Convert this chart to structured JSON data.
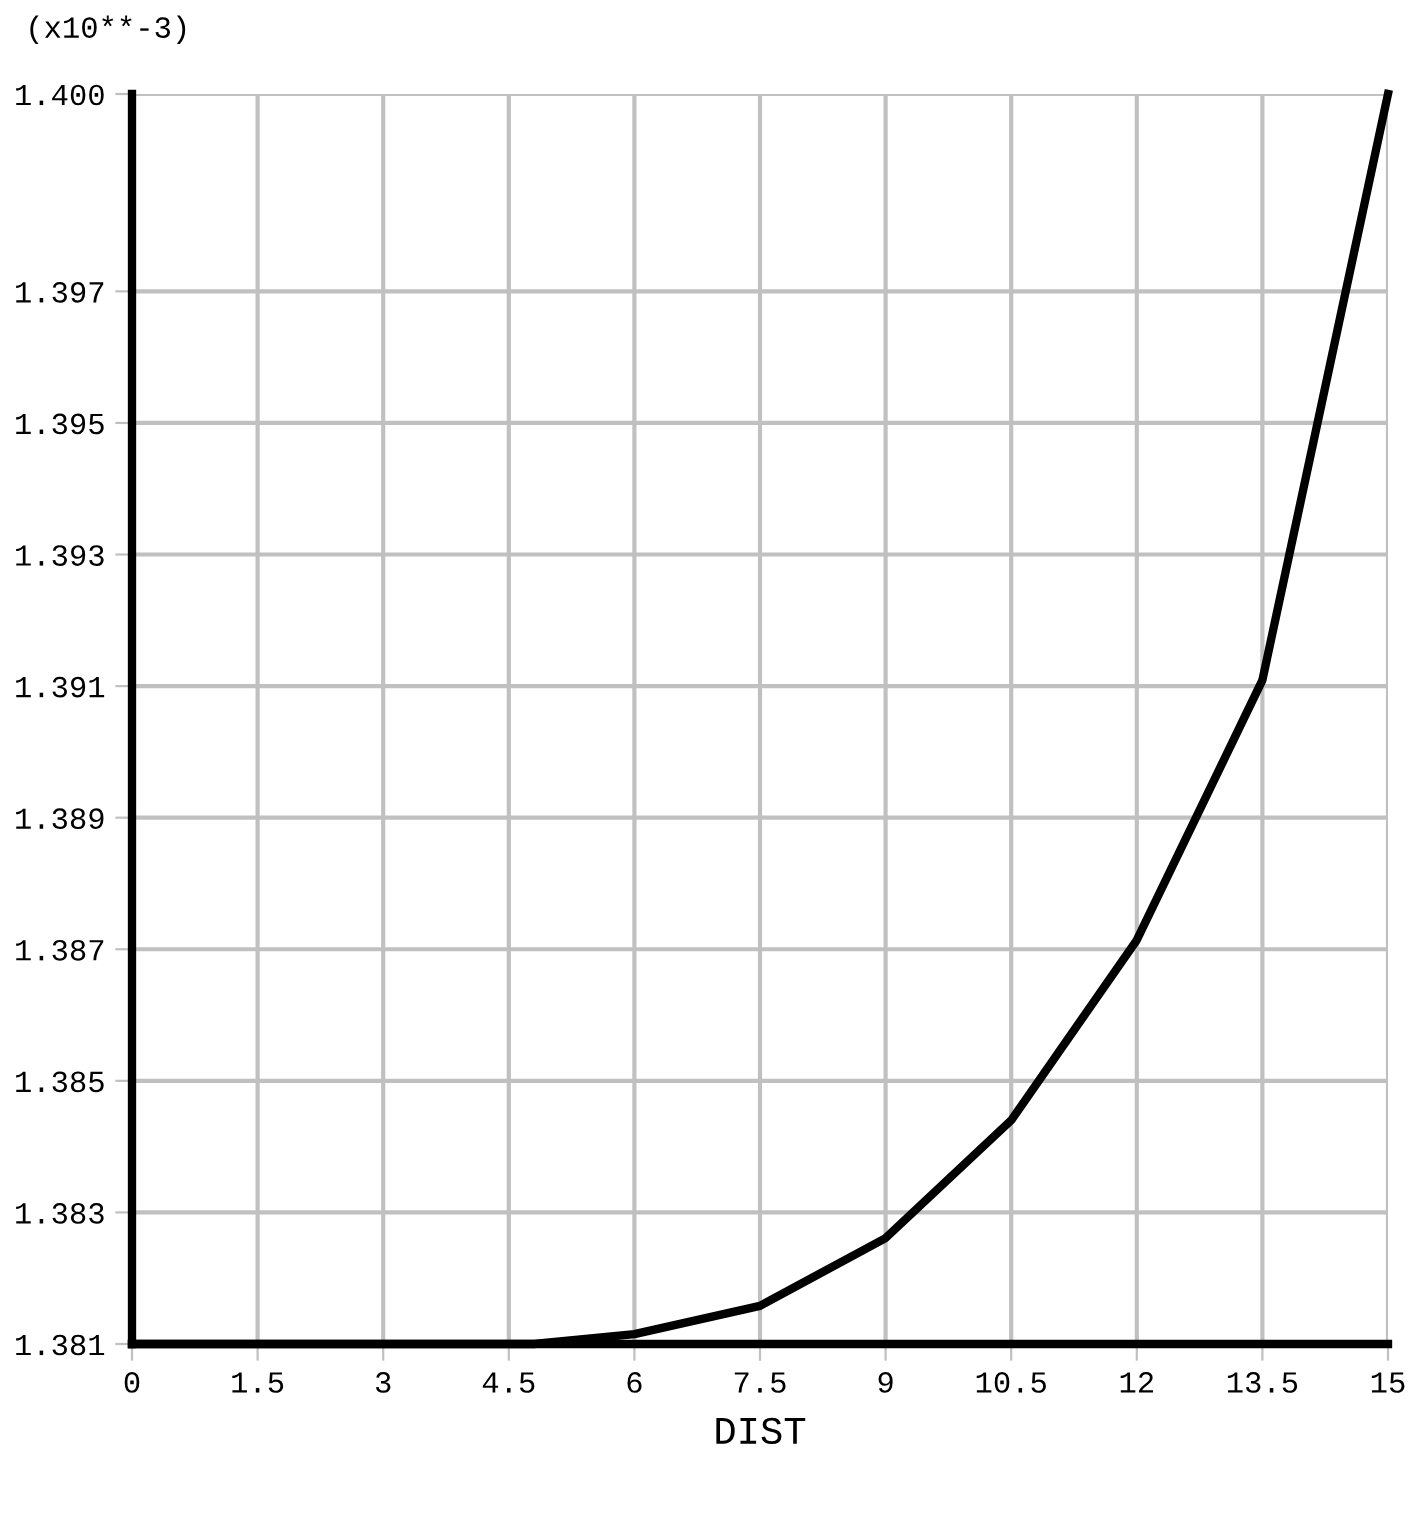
{
  "chart_data": {
    "type": "line",
    "xlabel": "DIST",
    "ylabel": "(x10**-3)",
    "x": [
      0,
      2.7,
      4.8,
      6,
      7.5,
      9,
      10.5,
      12,
      13.5,
      15
    ],
    "series": [
      {
        "color": "#000000",
        "values": [
          1.381,
          1.381,
          1.381,
          1.38115,
          1.38158,
          1.38261,
          1.3844,
          1.38714,
          1.39109,
          1.4
        ]
      }
    ],
    "xlim": [
      0,
      15
    ],
    "xticks": [
      0,
      1.5,
      3,
      4.5,
      6,
      7.5,
      9,
      10.5,
      12,
      13.5,
      15
    ],
    "ylim": [
      1.381,
      1.4
    ],
    "yticks": [
      1.381,
      1.383,
      1.385,
      1.387,
      1.389,
      1.391,
      1.393,
      1.395,
      1.397,
      {
        "value": 1.4,
        "label": "1.400"
      }
    ],
    "grid": true,
    "marker": "none",
    "line_style": "solid"
  }
}
